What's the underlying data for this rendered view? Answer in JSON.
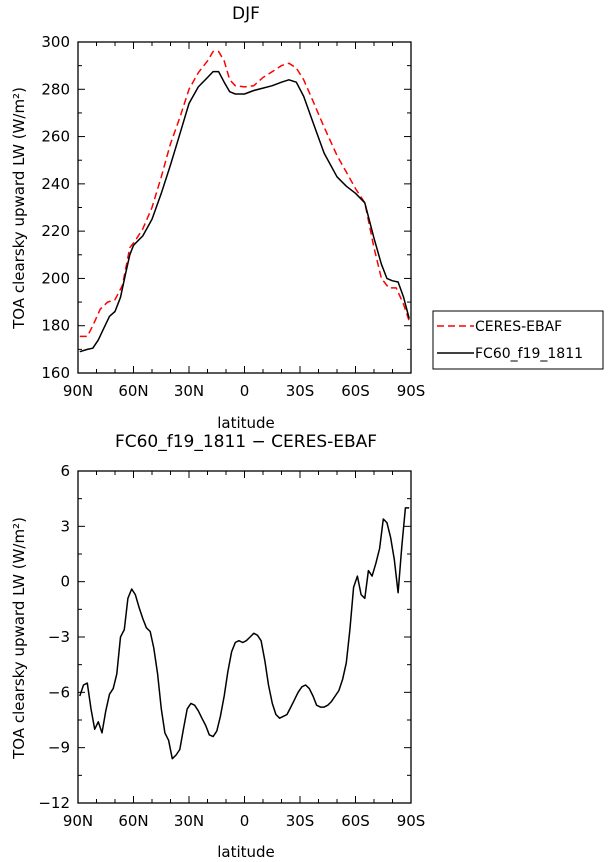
{
  "chart_data": [
    {
      "type": "line",
      "title": "DJF",
      "xlabel": "latitude",
      "ylabel": "TOA clearsky upward LW (W/m²)",
      "xlim": [
        -90,
        90
      ],
      "ylim": [
        160,
        300
      ],
      "xticks": [
        -90,
        -60,
        -30,
        0,
        30,
        60,
        90
      ],
      "xtick_labels": [
        "90N",
        "60N",
        "30N",
        "0",
        "30S",
        "60S",
        "90S"
      ],
      "yticks": [
        160,
        180,
        200,
        220,
        240,
        260,
        280,
        300
      ],
      "ytick_labels": [
        "160",
        "180",
        "200",
        "220",
        "240",
        "260",
        "280",
        "300"
      ],
      "legend_position": "right",
      "series": [
        {
          "name": "CERES-EBAF",
          "color": "#ff0000",
          "dash": true,
          "x": [
            -89,
            -85,
            -82,
            -78,
            -74,
            -70,
            -66,
            -62,
            -59,
            -55,
            -50,
            -45,
            -40,
            -35,
            -30,
            -25,
            -20,
            -17,
            -14,
            -11,
            -8,
            -5,
            0,
            5,
            10,
            15,
            20,
            24,
            28,
            32,
            37,
            43,
            50,
            55,
            60,
            65,
            70,
            74,
            78,
            82,
            86,
            89
          ],
          "y": [
            175.5,
            175.5,
            180,
            187,
            190,
            191,
            197,
            213,
            216,
            221,
            230,
            243,
            257,
            268,
            280,
            287,
            292,
            296,
            296,
            292,
            284,
            281.5,
            281,
            281.5,
            285,
            287.5,
            290,
            291,
            289,
            284,
            275,
            264,
            252,
            245,
            238,
            232,
            213,
            200,
            196,
            196,
            189,
            182
          ]
        },
        {
          "name": "FC60_f19_1811",
          "color": "#000000",
          "dash": false,
          "x": [
            -89,
            -85,
            -82,
            -79,
            -76,
            -73,
            -70,
            -67,
            -64,
            -62,
            -60,
            -55,
            -50,
            -45,
            -40,
            -35,
            -30,
            -25,
            -20,
            -17,
            -14,
            -11,
            -8,
            -5,
            0,
            5,
            10,
            15,
            20,
            24,
            28,
            32,
            37,
            43,
            50,
            55,
            60,
            65,
            70,
            74,
            77,
            80,
            83,
            86,
            89
          ],
          "y": [
            169,
            170,
            170.5,
            174,
            179,
            184,
            186,
            192,
            203,
            210,
            214,
            218,
            225,
            236,
            248,
            261,
            274,
            281,
            285,
            287.5,
            287.5,
            283,
            279,
            278,
            278,
            279.5,
            280.5,
            281.5,
            283,
            284,
            283,
            277,
            266,
            253,
            243,
            239,
            236,
            232,
            217,
            206,
            200,
            199,
            198.5,
            192,
            183
          ]
        }
      ]
    },
    {
      "type": "line",
      "title": "FC60_f19_1811 − CERES-EBAF",
      "xlabel": "latitude",
      "ylabel": "TOA clearsky upward LW (W/m²)",
      "xlim": [
        -90,
        90
      ],
      "ylim": [
        -12,
        6
      ],
      "xticks": [
        -90,
        -60,
        -30,
        0,
        30,
        60,
        90
      ],
      "xtick_labels": [
        "90N",
        "60N",
        "30N",
        "0",
        "30S",
        "60S",
        "90S"
      ],
      "yticks": [
        -12,
        -9,
        -6,
        -3,
        0,
        3,
        6
      ],
      "ytick_labels": [
        "−12",
        "−9",
        "−6",
        "−3",
        "0",
        "3",
        "6"
      ],
      "series": [
        {
          "color": "#000000",
          "x": [
            -89,
            -87,
            -85,
            -83,
            -81,
            -79,
            -77,
            -75,
            -73,
            -71,
            -69,
            -67,
            -65,
            -63,
            -61,
            -59,
            -57,
            -55,
            -53,
            -51,
            -49,
            -47,
            -45,
            -43,
            -41,
            -39,
            -37,
            -35,
            -33,
            -31,
            -29,
            -27,
            -25,
            -23,
            -21,
            -19,
            -17,
            -15,
            -13,
            -11,
            -9,
            -7,
            -5,
            -3,
            -1,
            1,
            3,
            5,
            7,
            9,
            11,
            13,
            15,
            17,
            19,
            21,
            23,
            25,
            27,
            29,
            31,
            33,
            35,
            37,
            39,
            41,
            43,
            45,
            47,
            49,
            51,
            53,
            55,
            57,
            59,
            61,
            63,
            65,
            67,
            69,
            71,
            73,
            75,
            77,
            79,
            81,
            83,
            85,
            87,
            89
          ],
          "y": [
            -6.2,
            -5.6,
            -5.5,
            -6.9,
            -8.0,
            -7.6,
            -8.2,
            -7.0,
            -6.1,
            -5.8,
            -5.0,
            -3.0,
            -2.6,
            -0.9,
            -0.4,
            -0.7,
            -1.4,
            -2.0,
            -2.5,
            -2.7,
            -3.6,
            -5.0,
            -6.9,
            -8.2,
            -8.6,
            -9.6,
            -9.4,
            -9.1,
            -8.0,
            -6.9,
            -6.6,
            -6.7,
            -7.0,
            -7.4,
            -7.8,
            -8.3,
            -8.4,
            -8.1,
            -7.3,
            -6.2,
            -4.9,
            -3.8,
            -3.3,
            -3.2,
            -3.3,
            -3.2,
            -3.0,
            -2.8,
            -2.9,
            -3.2,
            -4.3,
            -5.6,
            -6.6,
            -7.2,
            -7.4,
            -7.3,
            -7.2,
            -6.8,
            -6.4,
            -6.0,
            -5.7,
            -5.6,
            -5.8,
            -6.2,
            -6.7,
            -6.8,
            -6.8,
            -6.7,
            -6.5,
            -6.2,
            -5.9,
            -5.3,
            -4.4,
            -2.6,
            -0.3,
            0.3,
            -0.7,
            -0.9,
            0.6,
            0.3,
            1.0,
            1.8,
            3.4,
            3.2,
            2.4,
            1.2,
            -0.6,
            1.9,
            4.0,
            4.0
          ]
        }
      ]
    }
  ]
}
